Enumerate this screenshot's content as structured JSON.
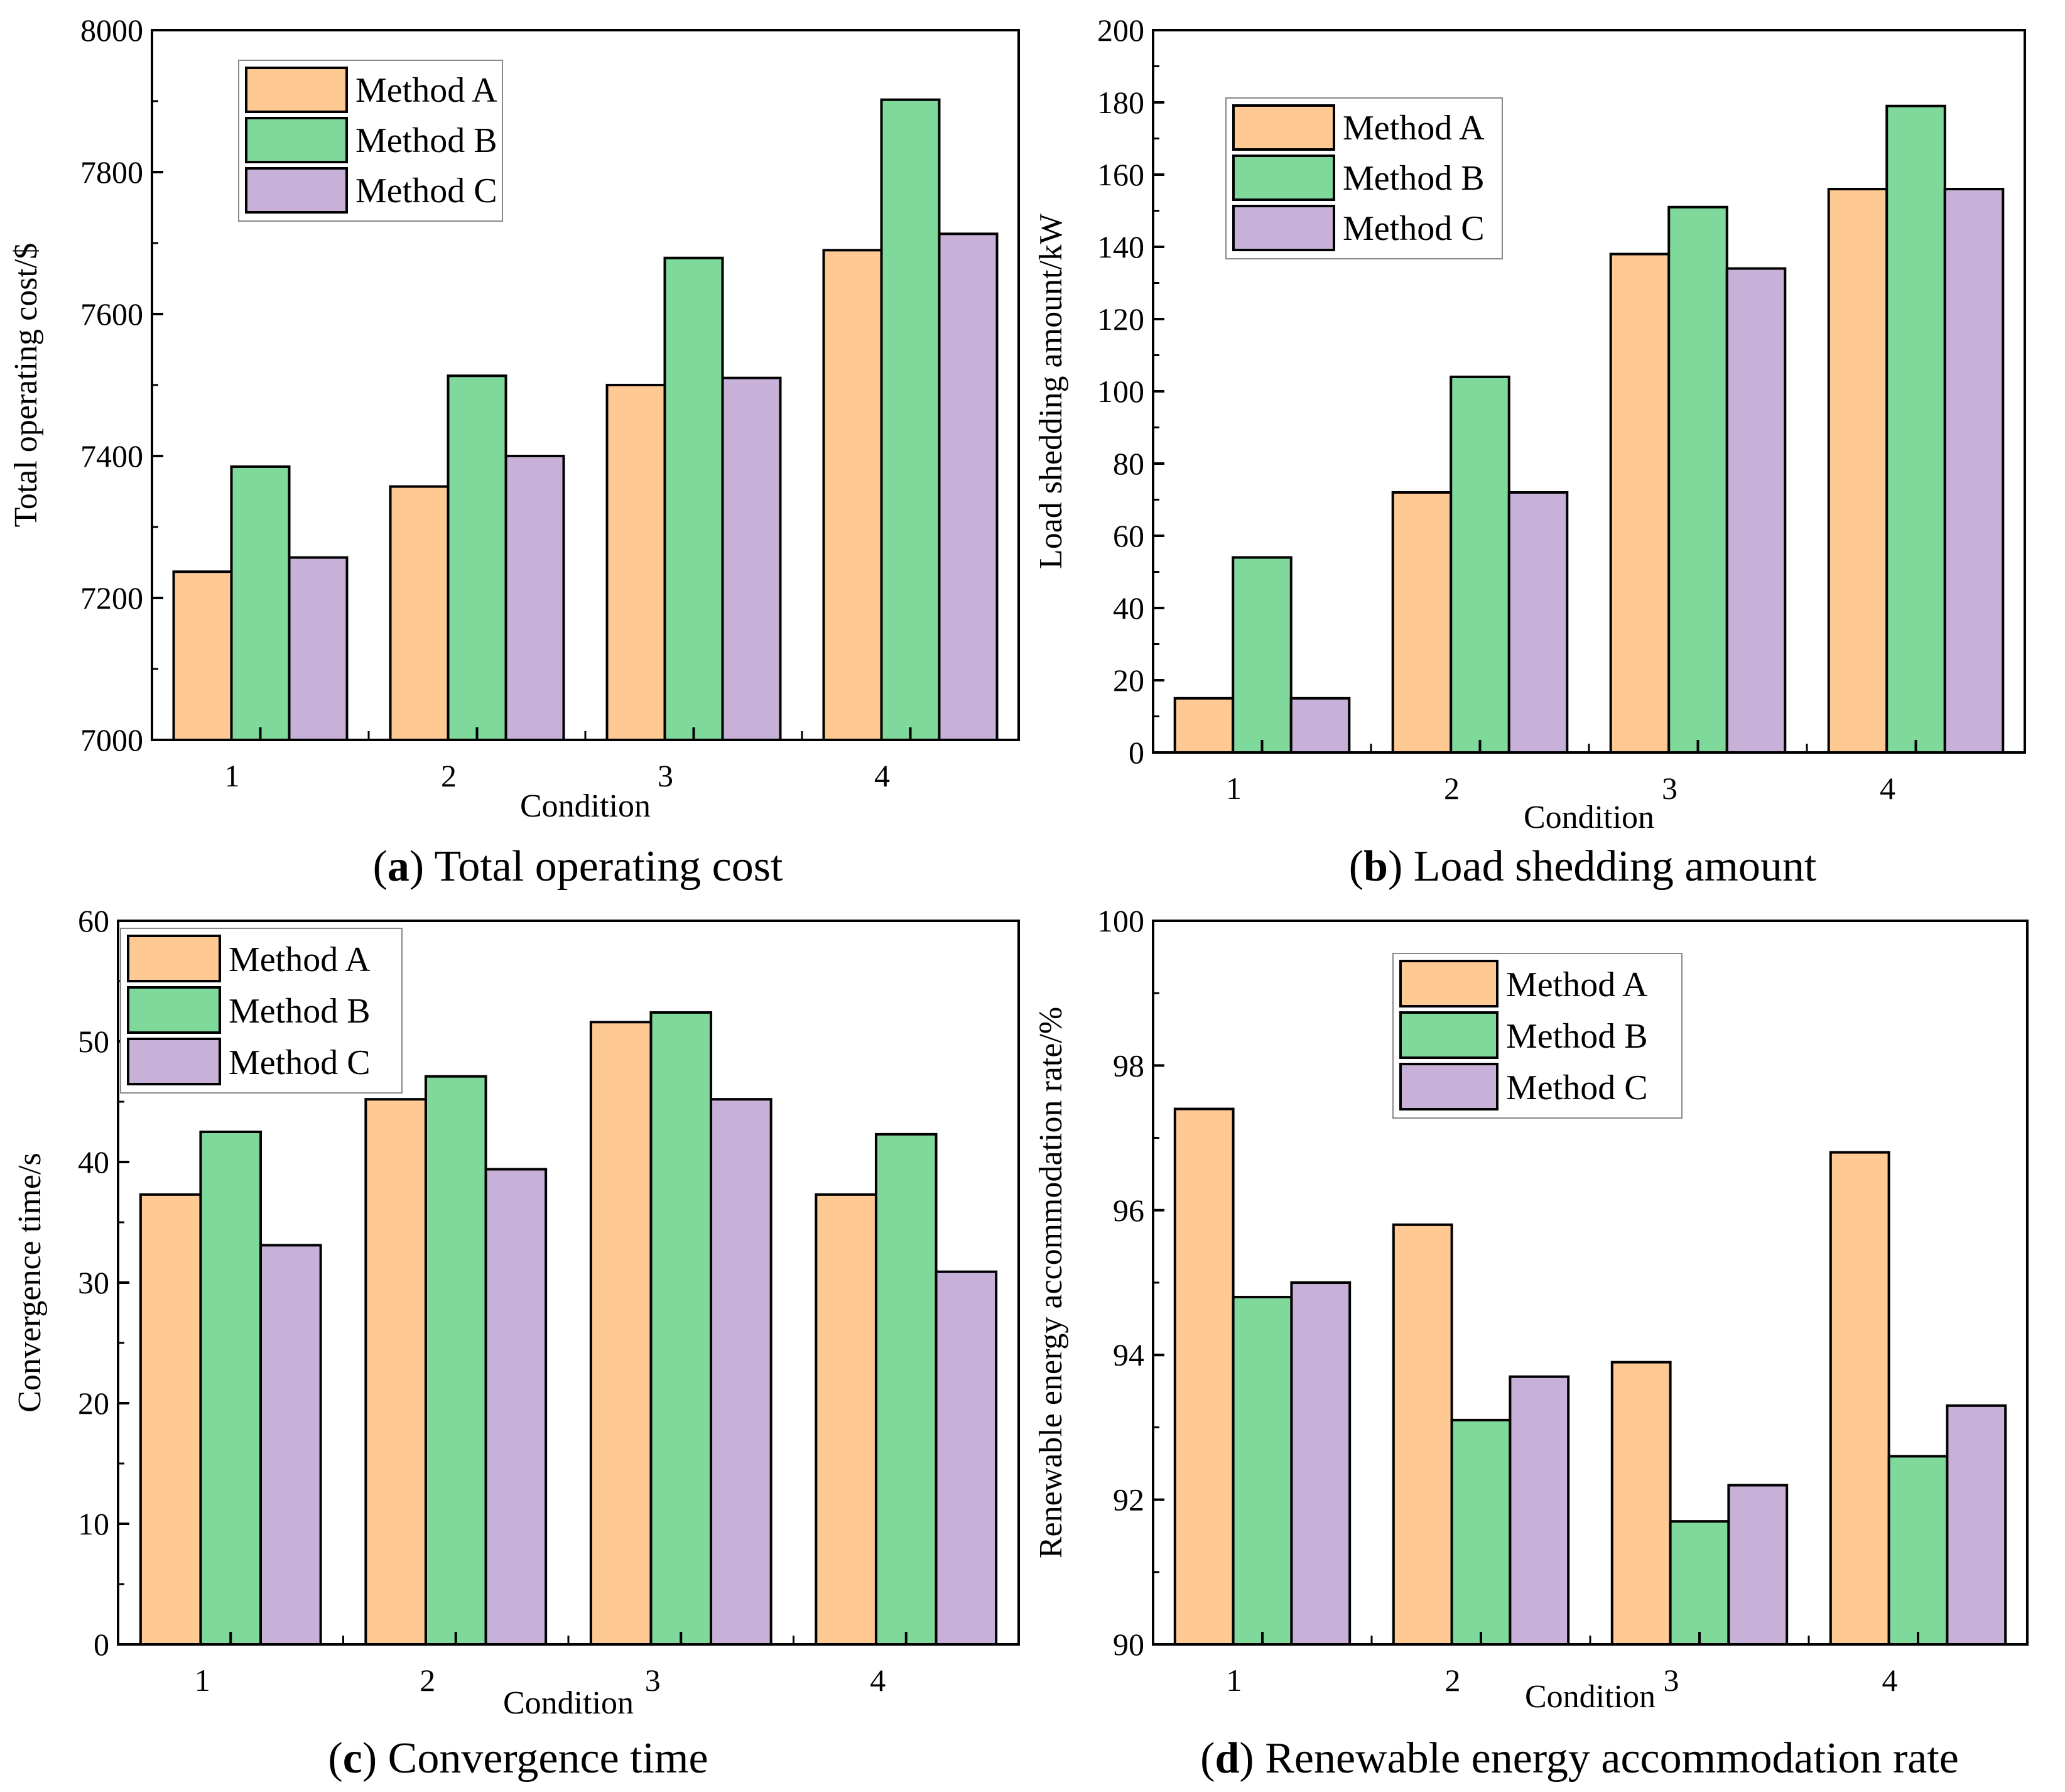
{
  "colors": {
    "method_a": "#ffc994",
    "method_b": "#7fd99a",
    "method_c": "#c8b1d8",
    "stroke": "#000000"
  },
  "legend": [
    "Method A",
    "Method B",
    "Method C"
  ],
  "chart_data": [
    {
      "id": "a",
      "type": "bar",
      "caption_letter": "a",
      "caption_text": "Total operating cost",
      "title": "",
      "xlabel": "Condition",
      "ylabel": "Total operating cost/$",
      "ylim": [
        7000,
        8000
      ],
      "yticks": [
        7000,
        7200,
        7400,
        7600,
        7800,
        8000
      ],
      "categories": [
        "1",
        "2",
        "3",
        "4"
      ],
      "series": [
        {
          "name": "Method A",
          "values": [
            7237,
            7357,
            7500,
            7690
          ]
        },
        {
          "name": "Method B",
          "values": [
            7385,
            7513,
            7679,
            7902
          ]
        },
        {
          "name": "Method C",
          "values": [
            7257,
            7400,
            7510,
            7713
          ]
        }
      ],
      "legend_position": "top-left"
    },
    {
      "id": "b",
      "type": "bar",
      "caption_letter": "b",
      "caption_text": "Load shedding amount",
      "title": "",
      "xlabel": "Condition",
      "ylabel": "Load shedding amount/kW",
      "ylim": [
        0,
        200
      ],
      "yticks": [
        0,
        20,
        40,
        60,
        80,
        100,
        120,
        140,
        160,
        180,
        200
      ],
      "categories": [
        "1",
        "2",
        "3",
        "4"
      ],
      "series": [
        {
          "name": "Method A",
          "values": [
            15,
            72,
            138,
            156
          ]
        },
        {
          "name": "Method B",
          "values": [
            54,
            104,
            151,
            179
          ]
        },
        {
          "name": "Method C",
          "values": [
            15,
            72,
            134,
            156
          ]
        }
      ],
      "legend_position": "top-left"
    },
    {
      "id": "c",
      "type": "bar",
      "caption_letter": "c",
      "caption_text": "Convergence time",
      "title": "",
      "xlabel": "Condition",
      "ylabel": "Convergence time/s",
      "ylim": [
        0,
        60
      ],
      "yticks": [
        0,
        10,
        20,
        30,
        40,
        50,
        60
      ],
      "categories": [
        "1",
        "2",
        "3",
        "4"
      ],
      "series": [
        {
          "name": "Method A",
          "values": [
            37.3,
            45.2,
            51.6,
            37.3
          ]
        },
        {
          "name": "Method B",
          "values": [
            42.5,
            47.1,
            52.4,
            42.3
          ]
        },
        {
          "name": "Method C",
          "values": [
            33.1,
            39.4,
            45.2,
            30.9
          ]
        }
      ],
      "legend_position": "top-left"
    },
    {
      "id": "d",
      "type": "bar",
      "caption_letter": "d",
      "caption_text": "Renewable energy accommodation rate",
      "title": "",
      "xlabel": "Condition",
      "ylabel": "Renewable energy accommodation rate/%",
      "ylim": [
        90,
        100
      ],
      "yticks": [
        90,
        92,
        94,
        96,
        98,
        100
      ],
      "categories": [
        "1",
        "2",
        "3",
        "4"
      ],
      "series": [
        {
          "name": "Method A",
          "values": [
            97.4,
            95.8,
            93.9,
            96.8
          ]
        },
        {
          "name": "Method B",
          "values": [
            94.8,
            93.1,
            91.7,
            92.6
          ]
        },
        {
          "name": "Method C",
          "values": [
            95.0,
            93.7,
            92.2,
            93.3
          ]
        }
      ],
      "legend_position": "top-center"
    }
  ]
}
